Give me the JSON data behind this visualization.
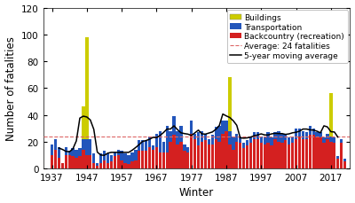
{
  "years": [
    1937,
    1938,
    1939,
    1940,
    1941,
    1942,
    1943,
    1944,
    1945,
    1946,
    1947,
    1948,
    1949,
    1950,
    1951,
    1952,
    1953,
    1954,
    1955,
    1956,
    1957,
    1958,
    1959,
    1960,
    1961,
    1962,
    1963,
    1964,
    1965,
    1966,
    1967,
    1968,
    1969,
    1970,
    1971,
    1972,
    1973,
    1974,
    1975,
    1976,
    1977,
    1978,
    1979,
    1980,
    1981,
    1982,
    1983,
    1984,
    1985,
    1986,
    1987,
    1988,
    1989,
    1990,
    1991,
    1992,
    1993,
    1994,
    1995,
    1996,
    1997,
    1998,
    1999,
    2000,
    2001,
    2002,
    2003,
    2004,
    2005,
    2006,
    2007,
    2008,
    2009,
    2010,
    2011,
    2012,
    2013,
    2014,
    2015,
    2016,
    2017,
    2018,
    2019,
    2020,
    2021
  ],
  "backcountry": [
    10,
    14,
    8,
    4,
    10,
    10,
    9,
    8,
    9,
    14,
    10,
    10,
    4,
    2,
    4,
    6,
    4,
    5,
    9,
    10,
    6,
    4,
    3,
    5,
    6,
    13,
    13,
    13,
    16,
    14,
    16,
    12,
    12,
    12,
    20,
    25,
    18,
    20,
    13,
    12,
    26,
    22,
    17,
    20,
    21,
    18,
    18,
    22,
    20,
    26,
    28,
    18,
    14,
    20,
    19,
    15,
    17,
    19,
    22,
    22,
    19,
    18,
    19,
    17,
    22,
    20,
    19,
    21,
    18,
    19,
    22,
    24,
    22,
    22,
    25,
    25,
    23,
    23,
    19,
    22,
    20,
    19,
    7,
    19,
    5
  ],
  "transportation": [
    8,
    8,
    8,
    0,
    6,
    3,
    6,
    6,
    6,
    8,
    12,
    12,
    7,
    2,
    7,
    7,
    7,
    5,
    3,
    4,
    7,
    7,
    7,
    7,
    8,
    8,
    8,
    8,
    8,
    3,
    10,
    16,
    8,
    20,
    8,
    14,
    10,
    12,
    5,
    4,
    10,
    4,
    10,
    8,
    5,
    4,
    7,
    9,
    12,
    10,
    8,
    10,
    10,
    6,
    5,
    4,
    4,
    4,
    5,
    5,
    5,
    6,
    8,
    6,
    5,
    8,
    7,
    5,
    5,
    5,
    8,
    6,
    6,
    5,
    7,
    5,
    4,
    4,
    4,
    4,
    4,
    4,
    2,
    3,
    2
  ],
  "buildings": [
    0,
    0,
    0,
    0,
    0,
    0,
    0,
    0,
    0,
    24,
    76,
    0,
    0,
    0,
    0,
    0,
    0,
    0,
    0,
    0,
    0,
    0,
    0,
    0,
    0,
    0,
    0,
    0,
    0,
    0,
    0,
    0,
    0,
    0,
    0,
    0,
    0,
    0,
    0,
    0,
    0,
    0,
    0,
    0,
    0,
    0,
    0,
    0,
    0,
    0,
    0,
    40,
    0,
    0,
    0,
    0,
    0,
    0,
    0,
    0,
    0,
    0,
    0,
    0,
    0,
    0,
    0,
    0,
    0,
    0,
    0,
    0,
    0,
    0,
    0,
    0,
    0,
    0,
    0,
    0,
    32,
    0,
    0,
    0,
    0
  ],
  "average": 24,
  "ylim": [
    0,
    120
  ],
  "yticks": [
    0,
    20,
    40,
    60,
    80,
    100,
    120
  ],
  "xtick_labels": [
    "1937",
    "1947",
    "1957",
    "1967",
    "1977",
    "1987",
    "1997",
    "2007",
    "2017"
  ],
  "xtick_positions": [
    1937,
    1947,
    1957,
    1967,
    1977,
    1987,
    1997,
    2007,
    2017
  ],
  "color_backcountry": "#d42020",
  "color_transportation": "#2255bb",
  "color_buildings": "#cccc00",
  "color_average_line": "#dd6666",
  "color_moving_avg": "#000000",
  "ylabel": "Number of fatalities",
  "xlabel": "Winter",
  "legend_fontsize": 6.5,
  "axis_fontsize": 8.5,
  "tick_fontsize": 7.5
}
